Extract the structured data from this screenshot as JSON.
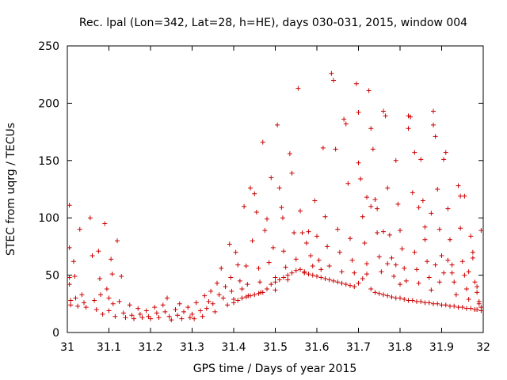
{
  "chart_data": {
    "type": "scatter",
    "title": "Rec. lpal (Lon=342, Lat=28, h=HE), days 030-031, 2015, window 004",
    "xlabel": "GPS time / Days of year 2015",
    "ylabel": "STEC from uqrg / TECUs",
    "xlim": [
      31,
      32
    ],
    "ylim": [
      0,
      250
    ],
    "x_ticks": [
      31,
      31.1,
      31.2,
      31.3,
      31.4,
      31.5,
      31.6,
      31.7,
      31.8,
      31.9,
      32
    ],
    "x_tick_labels": [
      "31",
      "31.1",
      "31.2",
      "31.3",
      "31.4",
      "31.5",
      "31.6",
      "31.7",
      "31.8",
      "31.9",
      "32"
    ],
    "y_ticks": [
      0,
      50,
      100,
      150,
      200,
      250
    ],
    "y_tick_labels": [
      "0",
      "50",
      "100",
      "150",
      "200",
      "250"
    ],
    "grid": false,
    "marker": "plus",
    "color": "#cc0000",
    "series": [
      {
        "points": [
          [
            31.005,
            111
          ],
          [
            31.005,
            74
          ],
          [
            31.005,
            48
          ],
          [
            31.005,
            42
          ],
          [
            31.008,
            28
          ],
          [
            31.008,
            24
          ],
          [
            31.015,
            62
          ],
          [
            31.018,
            49
          ],
          [
            31.02,
            30
          ],
          [
            31.025,
            23
          ],
          [
            31.03,
            90
          ],
          [
            31.035,
            33
          ],
          [
            31.04,
            26
          ],
          [
            31.045,
            22
          ],
          [
            31.055,
            100
          ],
          [
            31.06,
            67
          ],
          [
            31.065,
            28
          ],
          [
            31.07,
            20
          ],
          [
            31.075,
            71
          ],
          [
            31.078,
            47
          ],
          [
            31.08,
            33
          ],
          [
            31.085,
            16
          ],
          [
            31.09,
            95
          ],
          [
            31.095,
            38
          ],
          [
            31.1,
            30
          ],
          [
            31.1,
            19
          ],
          [
            31.105,
            64
          ],
          [
            31.108,
            51
          ],
          [
            31.11,
            25
          ],
          [
            31.115,
            14
          ],
          [
            31.12,
            80
          ],
          [
            31.125,
            27
          ],
          [
            31.13,
            49
          ],
          [
            31.135,
            17
          ],
          [
            31.14,
            13
          ],
          [
            31.15,
            24
          ],
          [
            31.155,
            15
          ],
          [
            31.16,
            12
          ],
          [
            31.17,
            21
          ],
          [
            31.175,
            16
          ],
          [
            31.18,
            13
          ],
          [
            31.19,
            19
          ],
          [
            31.195,
            14
          ],
          [
            31.2,
            12
          ],
          [
            31.21,
            22
          ],
          [
            31.215,
            17
          ],
          [
            31.22,
            13
          ],
          [
            31.23,
            24
          ],
          [
            31.235,
            18
          ],
          [
            31.24,
            30
          ],
          [
            31.245,
            14
          ],
          [
            31.25,
            11
          ],
          [
            31.26,
            20
          ],
          [
            31.265,
            15
          ],
          [
            31.27,
            25
          ],
          [
            31.275,
            12
          ],
          [
            31.28,
            18
          ],
          [
            31.29,
            22
          ],
          [
            31.295,
            13
          ],
          [
            31.3,
            16
          ],
          [
            31.305,
            12
          ],
          [
            31.31,
            26
          ],
          [
            31.32,
            19
          ],
          [
            31.325,
            14
          ],
          [
            31.33,
            32
          ],
          [
            31.335,
            21
          ],
          [
            31.34,
            27
          ],
          [
            31.345,
            36
          ],
          [
            31.35,
            25
          ],
          [
            31.355,
            18
          ],
          [
            31.36,
            43
          ],
          [
            31.365,
            33
          ],
          [
            31.37,
            56
          ],
          [
            31.375,
            30
          ],
          [
            31.38,
            40
          ],
          [
            31.385,
            24
          ],
          [
            31.39,
            77
          ],
          [
            31.393,
            48
          ],
          [
            31.395,
            36
          ],
          [
            31.4,
            29
          ],
          [
            31.405,
            70
          ],
          [
            31.41,
            59
          ],
          [
            31.415,
            45
          ],
          [
            31.42,
            38
          ],
          [
            31.425,
            110
          ],
          [
            31.43,
            58
          ],
          [
            31.433,
            42
          ],
          [
            31.435,
            32
          ],
          [
            31.44,
            126
          ],
          [
            31.445,
            80
          ],
          [
            31.45,
            121
          ],
          [
            31.455,
            105
          ],
          [
            31.46,
            56
          ],
          [
            31.463,
            44
          ],
          [
            31.465,
            35
          ],
          [
            31.47,
            166
          ],
          [
            31.475,
            89
          ],
          [
            31.48,
            99
          ],
          [
            31.485,
            61
          ],
          [
            31.49,
            135
          ],
          [
            31.495,
            74
          ],
          [
            31.5,
            48
          ],
          [
            31.5,
            37
          ],
          [
            31.505,
            181
          ],
          [
            31.51,
            126
          ],
          [
            31.515,
            109
          ],
          [
            31.518,
            100
          ],
          [
            31.52,
            71
          ],
          [
            31.525,
            57
          ],
          [
            31.53,
            46
          ],
          [
            31.535,
            156
          ],
          [
            31.54,
            139
          ],
          [
            31.545,
            87
          ],
          [
            31.55,
            64
          ],
          [
            31.555,
            213
          ],
          [
            31.56,
            106
          ],
          [
            31.565,
            87
          ],
          [
            31.57,
            52
          ],
          [
            31.575,
            78
          ],
          [
            31.58,
            88
          ],
          [
            31.585,
            67
          ],
          [
            31.59,
            58
          ],
          [
            31.595,
            115
          ],
          [
            31.6,
            84
          ],
          [
            31.605,
            63
          ],
          [
            31.61,
            55
          ],
          [
            31.615,
            161
          ],
          [
            31.62,
            101
          ],
          [
            31.625,
            75
          ],
          [
            31.63,
            58
          ],
          [
            31.635,
            226
          ],
          [
            31.64,
            220
          ],
          [
            31.645,
            160
          ],
          [
            31.65,
            90
          ],
          [
            31.655,
            70
          ],
          [
            31.66,
            53
          ],
          [
            31.665,
            186
          ],
          [
            31.67,
            182
          ],
          [
            31.675,
            130
          ],
          [
            31.68,
            82
          ],
          [
            31.685,
            63
          ],
          [
            31.69,
            52
          ],
          [
            31.695,
            217
          ],
          [
            31.7,
            192
          ],
          [
            31.705,
            134
          ],
          [
            31.71,
            101
          ],
          [
            31.715,
            78
          ],
          [
            31.72,
            60
          ],
          [
            31.725,
            211
          ],
          [
            31.73,
            178
          ],
          [
            31.735,
            160
          ],
          [
            31.74,
            116
          ],
          [
            31.745,
            87
          ],
          [
            31.75,
            66
          ],
          [
            31.755,
            53
          ],
          [
            31.76,
            193
          ],
          [
            31.765,
            189
          ],
          [
            31.77,
            126
          ],
          [
            31.775,
            85
          ],
          [
            31.78,
            65
          ],
          [
            31.785,
            49
          ],
          [
            31.79,
            150
          ],
          [
            31.795,
            112
          ],
          [
            31.8,
            89
          ],
          [
            31.805,
            73
          ],
          [
            31.81,
            56
          ],
          [
            31.815,
            45
          ],
          [
            31.82,
            189
          ],
          [
            31.825,
            188
          ],
          [
            31.83,
            122
          ],
          [
            31.835,
            70
          ],
          [
            31.84,
            55
          ],
          [
            31.845,
            43
          ],
          [
            31.85,
            151
          ],
          [
            31.855,
            115
          ],
          [
            31.86,
            92
          ],
          [
            31.865,
            62
          ],
          [
            31.87,
            48
          ],
          [
            31.875,
            37
          ],
          [
            31.88,
            181
          ],
          [
            31.885,
            171
          ],
          [
            31.89,
            125
          ],
          [
            31.895,
            90
          ],
          [
            31.9,
            67
          ],
          [
            31.905,
            52
          ],
          [
            31.91,
            157
          ],
          [
            31.915,
            108
          ],
          [
            31.92,
            81
          ],
          [
            31.925,
            59
          ],
          [
            31.93,
            44
          ],
          [
            31.935,
            33
          ],
          [
            31.94,
            128
          ],
          [
            31.945,
            91
          ],
          [
            31.95,
            62
          ],
          [
            31.955,
            50
          ],
          [
            31.96,
            38
          ],
          [
            31.965,
            29
          ],
          [
            31.97,
            84
          ],
          [
            31.975,
            65
          ],
          [
            31.98,
            44
          ],
          [
            31.985,
            35
          ],
          [
            31.99,
            27
          ],
          [
            31.995,
            22
          ],
          [
            31.995,
            89
          ],
          [
            31.99,
            25
          ],
          [
            31.985,
            20
          ],
          [
            31.7,
            148
          ],
          [
            31.72,
            118
          ],
          [
            31.73,
            110
          ],
          [
            31.745,
            108
          ],
          [
            31.76,
            88
          ],
          [
            31.77,
            60
          ],
          [
            31.79,
            59
          ],
          [
            31.8,
            42
          ],
          [
            31.82,
            178
          ],
          [
            31.835,
            157
          ],
          [
            31.845,
            109
          ],
          [
            31.86,
            81
          ],
          [
            31.875,
            104
          ],
          [
            31.88,
            193
          ],
          [
            31.885,
            59
          ],
          [
            31.895,
            44
          ],
          [
            31.905,
            151
          ],
          [
            31.915,
            63
          ],
          [
            31.925,
            52
          ],
          [
            31.945,
            119
          ],
          [
            31.955,
            119
          ],
          [
            31.965,
            53
          ],
          [
            31.975,
            70
          ],
          [
            31.985,
            40
          ],
          [
            31.7,
            43
          ],
          [
            31.71,
            47
          ],
          [
            31.72,
            51
          ],
          [
            31.73,
            38
          ],
          [
            31.74,
            35
          ],
          [
            31.75,
            34
          ],
          [
            31.76,
            33
          ],
          [
            31.77,
            32
          ],
          [
            31.78,
            31
          ],
          [
            31.79,
            30
          ],
          [
            31.8,
            30
          ],
          [
            31.81,
            29
          ],
          [
            31.82,
            28
          ],
          [
            31.83,
            28
          ],
          [
            31.84,
            27
          ],
          [
            31.85,
            27
          ],
          [
            31.86,
            26
          ],
          [
            31.87,
            26
          ],
          [
            31.88,
            25
          ],
          [
            31.89,
            25
          ],
          [
            31.9,
            24
          ],
          [
            31.91,
            24
          ],
          [
            31.92,
            23
          ],
          [
            31.93,
            23
          ],
          [
            31.94,
            22
          ],
          [
            31.95,
            22
          ],
          [
            31.96,
            21
          ],
          [
            31.97,
            21
          ],
          [
            31.98,
            20
          ],
          [
            31.995,
            19
          ],
          [
            31.4,
            26
          ],
          [
            31.41,
            28
          ],
          [
            31.42,
            30
          ],
          [
            31.43,
            31
          ],
          [
            31.44,
            32
          ],
          [
            31.45,
            33
          ],
          [
            31.46,
            34
          ],
          [
            31.47,
            35
          ],
          [
            31.48,
            38
          ],
          [
            31.49,
            42
          ],
          [
            31.5,
            44
          ],
          [
            31.51,
            46
          ],
          [
            31.52,
            48
          ],
          [
            31.53,
            50
          ],
          [
            31.54,
            52
          ],
          [
            31.55,
            54
          ],
          [
            31.56,
            55
          ],
          [
            31.57,
            53
          ],
          [
            31.58,
            51
          ],
          [
            31.59,
            50
          ],
          [
            31.6,
            49
          ],
          [
            31.61,
            48
          ],
          [
            31.62,
            47
          ],
          [
            31.63,
            46
          ],
          [
            31.64,
            45
          ],
          [
            31.65,
            44
          ],
          [
            31.66,
            43
          ],
          [
            31.67,
            42
          ],
          [
            31.68,
            41
          ],
          [
            31.69,
            40
          ]
        ]
      }
    ]
  }
}
